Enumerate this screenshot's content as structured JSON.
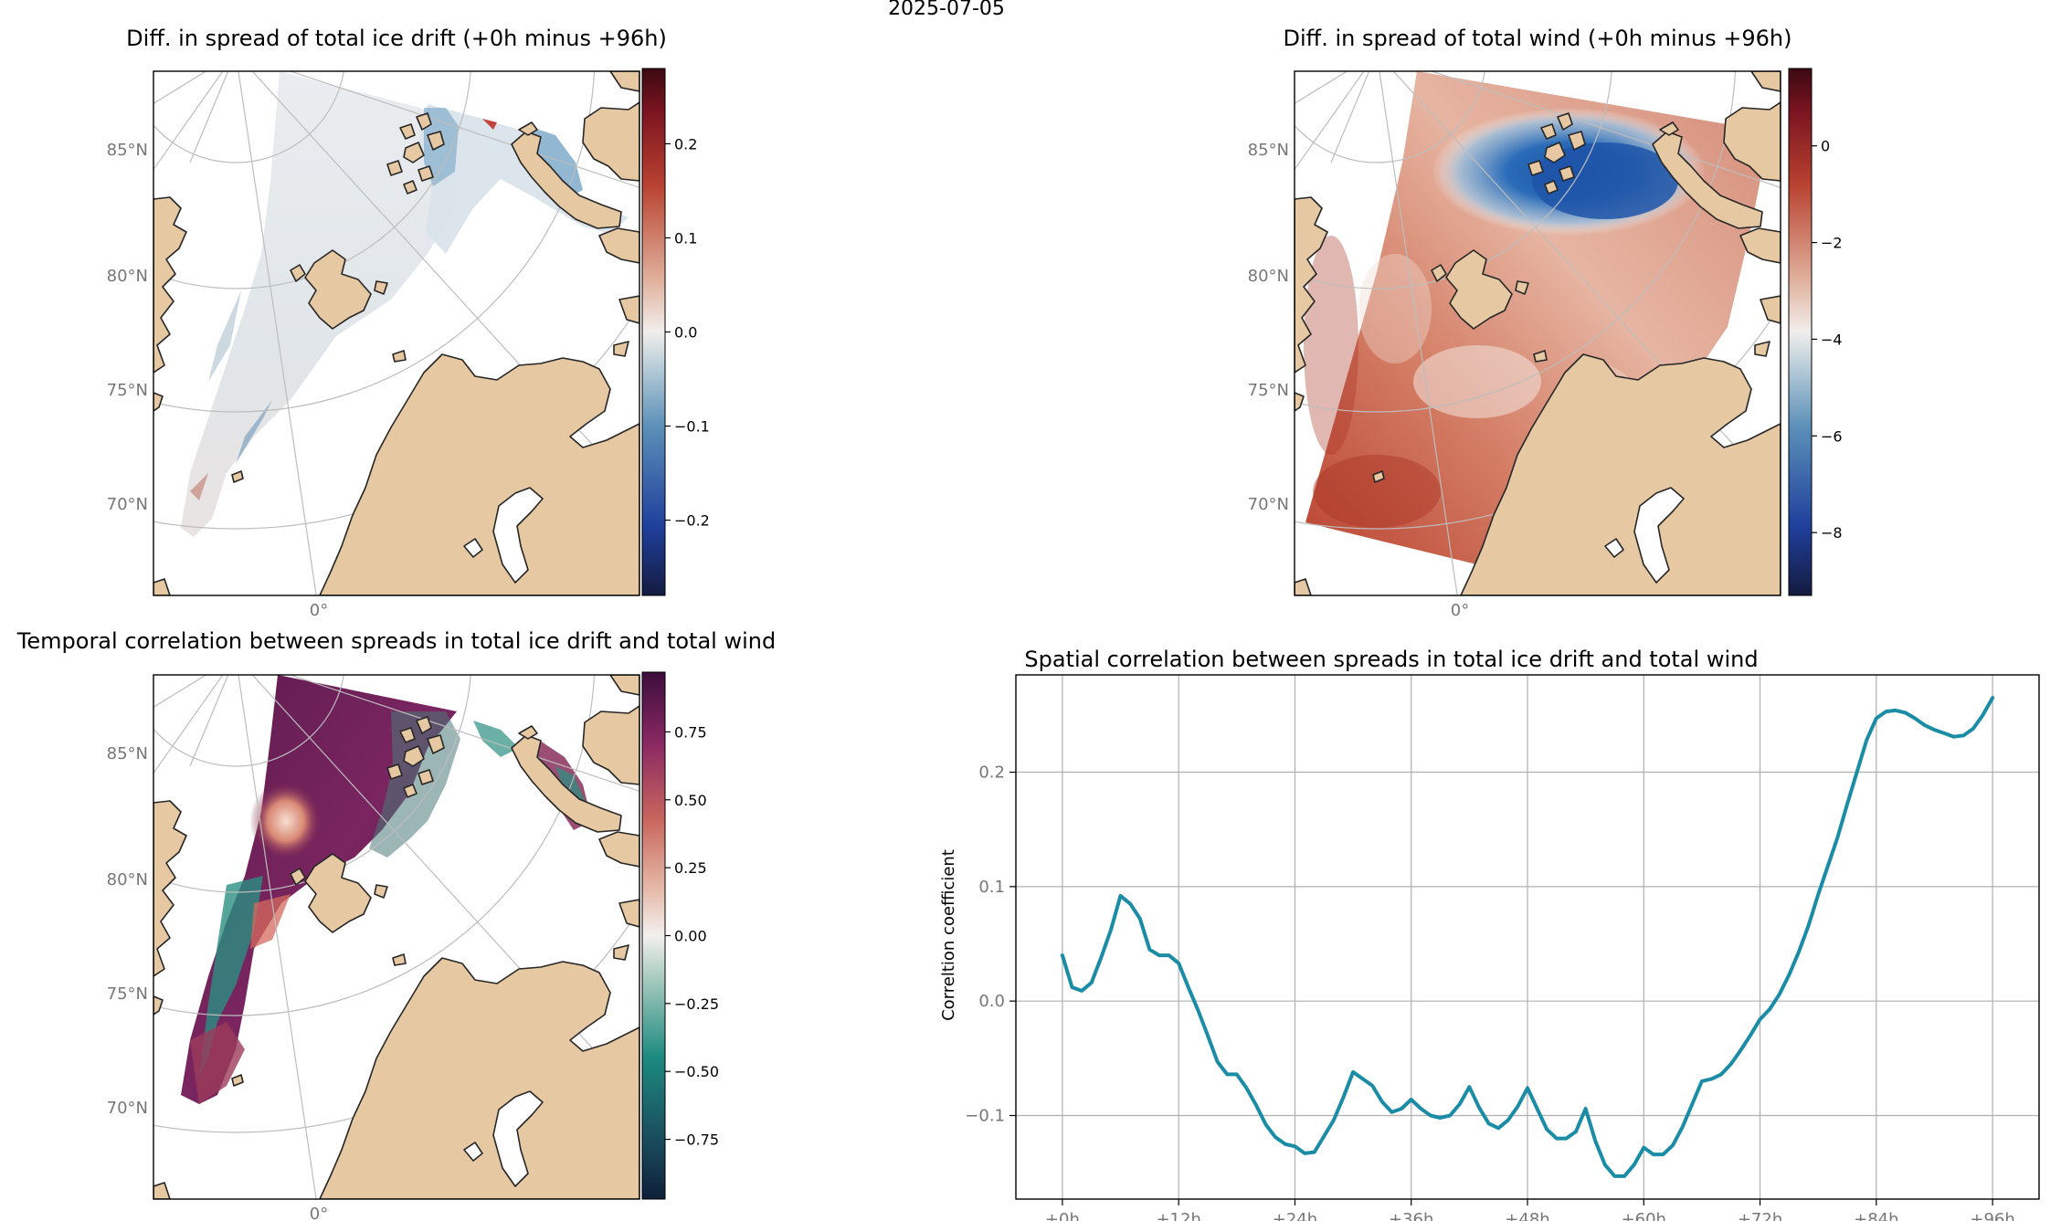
{
  "figure": {
    "suptitle": "2025-07-05"
  },
  "colors": {
    "land": "#e6c9a3",
    "coast": "#222222",
    "grid": "#b8b8b8",
    "line": "#1a8ca6",
    "tick_label": "#777777"
  },
  "maps": {
    "ice": {
      "title": "Diff. in spread of total ice drift (+0h minus +96h)",
      "colorbar_ticks": [
        "0.2",
        "0.1",
        "0.0",
        "−0.1",
        "−0.2"
      ],
      "colorbar_values": [
        0.2,
        0.1,
        0.0,
        -0.1,
        -0.2
      ],
      "colorbar_range": [
        -0.28,
        0.28
      ]
    },
    "wind": {
      "title": "Diff. in spread of total wind (+0h minus +96h)",
      "colorbar_ticks": [
        "0",
        "−2",
        "−4",
        "−6",
        "−8"
      ],
      "colorbar_values": [
        0,
        -2,
        -4,
        -6,
        -8
      ],
      "colorbar_range": [
        -9.3,
        1.6
      ]
    },
    "temporal": {
      "title": "Temporal correlation between spreads in total ice drift and total wind",
      "colorbar_ticks": [
        "0.75",
        "0.50",
        "0.25",
        "0.00",
        "−0.25",
        "−0.50",
        "−0.75"
      ],
      "colorbar_values": [
        0.75,
        0.5,
        0.25,
        0.0,
        -0.25,
        -0.5,
        -0.75
      ],
      "colorbar_range": [
        -0.97,
        0.97
      ]
    },
    "lat_labels": [
      "85°N",
      "80°N",
      "75°N",
      "70°N"
    ],
    "lon_label": "0°"
  },
  "chart_data": {
    "type": "line",
    "title": "Spatial correlation between spreads in total ice drift and total wind",
    "xlabel": "",
    "ylabel": "Correltion coefficient",
    "x_tick_labels": [
      "+0h",
      "+12h",
      "+24h",
      "+36h",
      "+48h",
      "+60h",
      "+72h",
      "+84h",
      "+96h"
    ],
    "x_tick_values": [
      0,
      12,
      24,
      36,
      48,
      60,
      72,
      84,
      96
    ],
    "y_tick_labels": [
      "0.2",
      "0.1",
      "0.0",
      "−0.1"
    ],
    "y_tick_values": [
      0.2,
      0.1,
      0.0,
      -0.1
    ],
    "xlim": [
      -4.8,
      100.8
    ],
    "ylim": [
      -0.173,
      0.285
    ],
    "grid": true,
    "series": [
      {
        "name": "spatial correlation",
        "x": [
          0,
          1,
          2,
          3,
          4,
          5,
          6,
          7,
          8,
          9,
          10,
          11,
          12,
          13,
          14,
          15,
          16,
          17,
          18,
          19,
          20,
          21,
          22,
          23,
          24,
          25,
          26,
          27,
          28,
          29,
          30,
          31,
          32,
          33,
          34,
          35,
          36,
          37,
          38,
          39,
          40,
          41,
          42,
          43,
          44,
          45,
          46,
          47,
          48,
          49,
          50,
          51,
          52,
          53,
          54,
          55,
          56,
          57,
          58,
          59,
          60,
          61,
          62,
          63,
          64,
          65,
          66,
          67,
          68,
          69,
          70,
          71,
          72,
          73,
          74,
          75,
          76,
          77,
          78,
          79,
          80,
          81,
          82,
          83,
          84,
          85,
          86,
          87,
          88,
          89,
          90,
          91,
          92,
          93,
          94,
          95,
          96
        ],
        "values": [
          0.04,
          0.012,
          0.009,
          0.016,
          0.038,
          0.062,
          0.092,
          0.085,
          0.072,
          0.045,
          0.04,
          0.04,
          0.033,
          0.012,
          -0.008,
          -0.03,
          -0.053,
          -0.064,
          -0.064,
          -0.076,
          -0.091,
          -0.108,
          -0.119,
          -0.125,
          -0.127,
          -0.133,
          -0.132,
          -0.118,
          -0.104,
          -0.084,
          -0.062,
          -0.068,
          -0.074,
          -0.088,
          -0.097,
          -0.094,
          -0.086,
          -0.094,
          -0.1,
          -0.102,
          -0.1,
          -0.09,
          -0.075,
          -0.093,
          -0.107,
          -0.111,
          -0.104,
          -0.092,
          -0.076,
          -0.094,
          -0.112,
          -0.12,
          -0.12,
          -0.114,
          -0.094,
          -0.122,
          -0.143,
          -0.153,
          -0.153,
          -0.143,
          -0.128,
          -0.134,
          -0.134,
          -0.126,
          -0.11,
          -0.09,
          -0.07,
          -0.068,
          -0.064,
          -0.055,
          -0.043,
          -0.03,
          -0.016,
          -0.007,
          0.006,
          0.023,
          0.043,
          0.066,
          0.093,
          0.118,
          0.143,
          0.172,
          0.2,
          0.228,
          0.247,
          0.253,
          0.254,
          0.252,
          0.247,
          0.241,
          0.237,
          0.234,
          0.231,
          0.232,
          0.238,
          0.25,
          0.265
        ]
      }
    ]
  }
}
